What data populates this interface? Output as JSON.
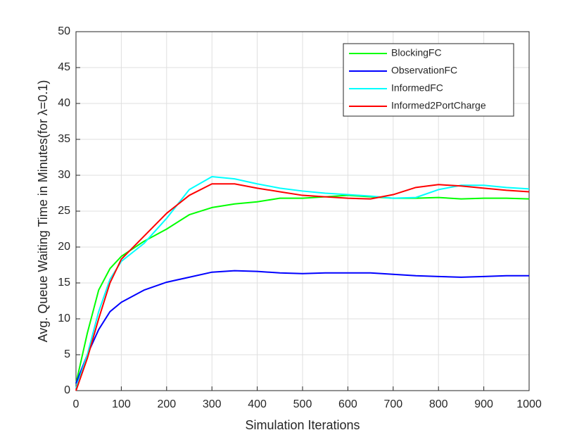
{
  "chart_data": {
    "type": "line",
    "xlabel": "Simulation Iterations",
    "ylabel": "Avg. Queue Waiting Time in Minutes(for λ=0.1)",
    "x": [
      0,
      25,
      50,
      75,
      100,
      150,
      200,
      250,
      300,
      350,
      400,
      450,
      500,
      550,
      600,
      650,
      700,
      750,
      800,
      850,
      900,
      950,
      1000
    ],
    "series": [
      {
        "name": "BlockingFC",
        "color": "#00ff00",
        "values": [
          1,
          8,
          14,
          17,
          18.7,
          20.8,
          22.5,
          24.5,
          25.5,
          26,
          26.3,
          26.8,
          26.8,
          27,
          27.2,
          27,
          26.8,
          26.8,
          26.9,
          26.7,
          26.8,
          26.8,
          26.7
        ]
      },
      {
        "name": "ObservationFC",
        "color": "#0000ff",
        "values": [
          1,
          5,
          8.5,
          11,
          12.3,
          14,
          15.1,
          15.8,
          16.5,
          16.7,
          16.6,
          16.4,
          16.3,
          16.4,
          16.4,
          16.4,
          16.2,
          16,
          15.9,
          15.8,
          15.9,
          16,
          16
        ]
      },
      {
        "name": "InformedFC",
        "color": "#00ffff",
        "values": [
          0.3,
          5,
          11,
          15.5,
          18,
          20.5,
          24,
          28,
          29.8,
          29.5,
          28.8,
          28.2,
          27.8,
          27.5,
          27.3,
          27.1,
          26.8,
          26.9,
          28,
          28.6,
          28.6,
          28.3,
          28.1
        ]
      },
      {
        "name": "Informed2PortCharge",
        "color": "#ff0000",
        "values": [
          0,
          4.5,
          10,
          15,
          18.3,
          21.5,
          24.7,
          27.2,
          28.8,
          28.8,
          28.2,
          27.7,
          27.2,
          27,
          26.8,
          26.7,
          27.3,
          28.3,
          28.7,
          28.5,
          28.2,
          27.9,
          27.7
        ]
      }
    ],
    "xlim": [
      0,
      1000
    ],
    "xticks": [
      0,
      100,
      200,
      300,
      400,
      500,
      600,
      700,
      800,
      900,
      1000
    ],
    "ylim": [
      0,
      50
    ],
    "yticks": [
      0,
      5,
      10,
      15,
      20,
      25,
      30,
      35,
      40,
      45,
      50
    ],
    "grid": true,
    "legend": "northeast"
  }
}
